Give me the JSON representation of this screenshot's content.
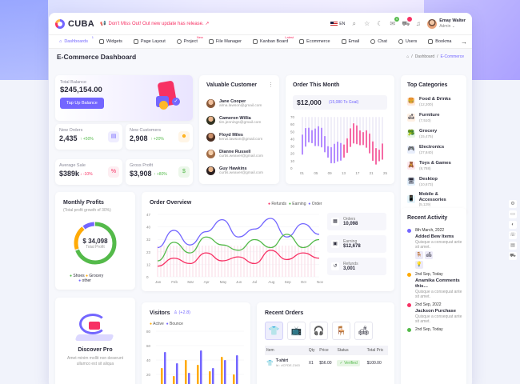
{
  "app": {
    "logo": "CUBA",
    "notice": "Don't Miss Out! Out new update has release. ↗",
    "language": "EN",
    "user": {
      "name": "Emay Walter",
      "role": "Admin ⌄"
    },
    "badges": {
      "messages": "0",
      "cart": "4"
    }
  },
  "nav": [
    "Dashboards",
    "Widgets",
    "Page Layout",
    "Project",
    "File Manager",
    "Kanban Board",
    "Ecommerce",
    "Email",
    "Chat",
    "Users",
    "Bookma"
  ],
  "nav_badges": {
    "dashboards": "1",
    "project": "New",
    "kanban": "Latest"
  },
  "page": {
    "title": "E-Commerce Dashboard",
    "crumb_home": "⌂",
    "crumb_1": "Dashboard",
    "crumb_2": "E-Commerce"
  },
  "balance": {
    "label": "Total Balance",
    "value": "$245,154.00",
    "button": "Tap Up Balance"
  },
  "stats": [
    {
      "label": "New Orders",
      "value": "2,435",
      "change": "↑ +50%",
      "trend": "up"
    },
    {
      "label": "New Customers",
      "value": "2,908",
      "change": "↑ +20%",
      "trend": "up"
    },
    {
      "label": "Average Sale",
      "value": "$389k",
      "change": "↓ -10%",
      "trend": "down"
    },
    {
      "label": "Gross Profit",
      "value": "$3,908",
      "change": "↑ +80%",
      "trend": "up"
    }
  ],
  "customers": {
    "title": "Valuable Customer",
    "items": [
      {
        "name": "Jane Cooper",
        "email": "alma.lawson@gmail.com"
      },
      {
        "name": "Cameron Willia",
        "email": "tim.jennings@gmail.com"
      },
      {
        "name": "Floyd Miles",
        "email": "kenzi.lawson@gmail.com"
      },
      {
        "name": "Dianne Russell",
        "email": "curtis.weaver@gmail.com"
      },
      {
        "name": "Guy Hawkins",
        "email": "curtis.weaver@gmail.com"
      }
    ]
  },
  "order_month": {
    "title": "Order This Month",
    "value": "$12,000",
    "goal": "(15,080 To Goal)",
    "chart_data": {
      "type": "bar",
      "categories": [
        "01",
        "05",
        "09",
        "13",
        "17",
        "21",
        "25"
      ],
      "yticks": [
        "70",
        "60",
        "50",
        "40",
        "30",
        "20",
        "10",
        "0"
      ],
      "ylim": [
        0,
        70
      ]
    }
  },
  "categories": {
    "title": "Top Categories",
    "items": [
      {
        "name": "Food & Drinks",
        "count": "(12,200)",
        "icon": "food-icon"
      },
      {
        "name": "Furniture",
        "count": "(7,510)",
        "icon": "sofa-icon"
      },
      {
        "name": "Grocery",
        "count": "(15,475)",
        "icon": "grocery-icon"
      },
      {
        "name": "Electronics",
        "count": "(27,840)",
        "icon": "electronics-icon"
      },
      {
        "name": "Toys & Games",
        "count": "(8,788)",
        "icon": "toys-icon"
      },
      {
        "name": "Desktop",
        "count": "(10,673)",
        "icon": "desktop-icon"
      },
      {
        "name": "Mobile & Accessories",
        "count": "(5,129)",
        "icon": "mobile-icon"
      }
    ]
  },
  "activity": {
    "title": "Recent Activity",
    "items": [
      {
        "date": "8th March, 2022",
        "title": "Added Bew Items",
        "text": "Quisque a consequat ante sit amet."
      },
      {
        "date": "2nd Sep, Today",
        "title": "Anamika Comments this…",
        "text": "Quisque a consequat ante sit amet."
      },
      {
        "date": "2nd Sep, 2022",
        "title": "Jackson Purchase",
        "text": "Quisque a consequat ante sit amet."
      },
      {
        "date": "2nd Sep, Today",
        "title": "",
        "text": ""
      }
    ]
  },
  "profits": {
    "title": "Monthly Profits",
    "subtitle": "(Total profit growth of 30%)",
    "value": "$ 34,098",
    "label": "Total Profit",
    "legend": [
      "Shoes",
      "Grocery",
      "other"
    ],
    "chart_data": {
      "type": "pie",
      "labels": [
        "Shoes",
        "Grocery",
        "other"
      ],
      "values": [
        70,
        20,
        10
      ]
    }
  },
  "overview": {
    "title": "Order Overview",
    "legend": [
      "Refunds",
      "Earning",
      "Order"
    ],
    "chart_data": {
      "type": "area",
      "categories": [
        "Jan",
        "Feb",
        "Mar",
        "Apr",
        "May",
        "Jun",
        "Jul",
        "Aug",
        "Sep",
        "Oct",
        "Nov"
      ],
      "yticks": [
        "47",
        "40",
        "32",
        "23",
        "12",
        "0"
      ],
      "ylim": [
        0,
        47
      ],
      "series": [
        {
          "name": "Order",
          "values": [
            22,
            35,
            24,
            34,
            43,
            30,
            36,
            44,
            30,
            40,
            32
          ]
        },
        {
          "name": "Earning",
          "values": [
            12,
            26,
            18,
            30,
            24,
            20,
            28,
            22,
            32,
            22,
            28
          ]
        },
        {
          "name": "Refunds",
          "values": [
            8,
            14,
            10,
            18,
            12,
            15,
            10,
            20,
            13,
            18,
            14
          ]
        }
      ]
    }
  },
  "overview_stats": [
    {
      "label": "Orders",
      "value": "10,098"
    },
    {
      "label": "Earning",
      "value": "$12,678"
    },
    {
      "label": "Refunds",
      "value": "3,001"
    }
  ],
  "visitors": {
    "title": "Visitors",
    "change": "(+2.8)",
    "legend": [
      "Active",
      "Bounce"
    ],
    "yticks": [
      "80",
      "60",
      "40",
      "20"
    ]
  },
  "discover": {
    "title": "Discover Pro",
    "text": "Amet minim mollit non deserunt ullamco est sit aliqua"
  },
  "recent_orders": {
    "title": "Recent Orders",
    "columns": [
      "Item",
      "Qty",
      "Price",
      "Status",
      "Total Pric"
    ],
    "rows": [
      {
        "item": "T-shirt",
        "id": "Id : #CFDE-2163",
        "qty": "X1",
        "price": "$56.00",
        "status": "✓ Verified",
        "total": "$100.00"
      }
    ]
  }
}
